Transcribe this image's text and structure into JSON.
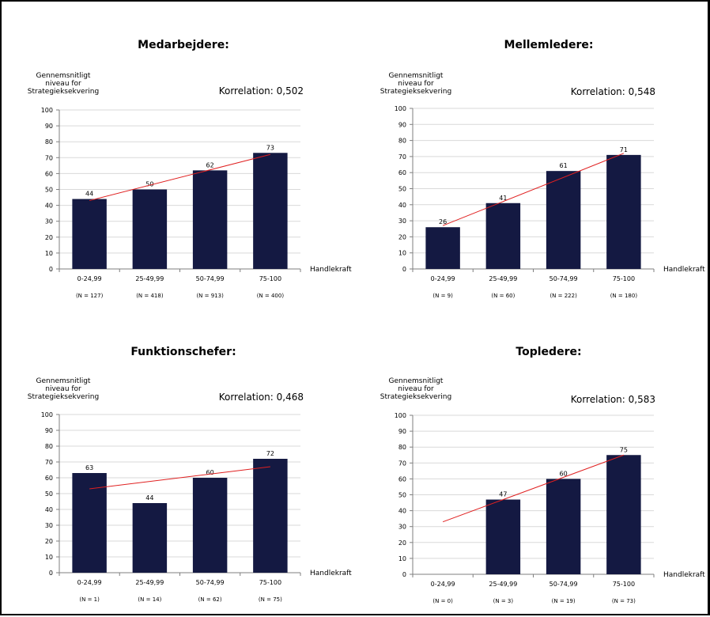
{
  "colors": {
    "bar": "#141942",
    "trend": "#e02020",
    "axis": "#7f7f7f",
    "grid": "#d9d9d9"
  },
  "chart_data": [
    {
      "type": "bar",
      "title": "Medarbejdere:",
      "ylabel": [
        "Gennemsnitligt",
        "niveau for",
        "Strategieksekvering"
      ],
      "xlabel": "Handlekraft",
      "correlation_label": "Korrelation: 0,502",
      "categories": [
        "0-24,99",
        "25-49,99",
        "50-74,99",
        "75-100"
      ],
      "n_labels": [
        "(N = 127)",
        "(N = 418)",
        "(N = 913)",
        "(N = 400)"
      ],
      "values": [
        44,
        50,
        62,
        73
      ],
      "trendline": [
        43,
        52.5,
        62,
        72
      ],
      "ylim": [
        0,
        100
      ],
      "yticks": [
        0,
        10,
        20,
        30,
        40,
        50,
        60,
        70,
        80,
        90,
        100
      ],
      "grid": true
    },
    {
      "type": "bar",
      "title": "Mellemledere:",
      "ylabel": [
        "Gennemsnitligt",
        "niveau for",
        "Strategieksekvering"
      ],
      "xlabel": "Handlekraft",
      "correlation_label": "Korrelation: 0,548",
      "categories": [
        "0-24,99",
        "25-49,99",
        "50-74,99",
        "75-100"
      ],
      "n_labels": [
        "(N = 9)",
        "(N = 60)",
        "(N = 222)",
        "(N = 180)"
      ],
      "values": [
        26,
        41,
        61,
        71
      ],
      "trendline": [
        27,
        42,
        57,
        72
      ],
      "ylim": [
        0,
        100
      ],
      "yticks": [
        0,
        10,
        20,
        30,
        40,
        50,
        60,
        70,
        80,
        90,
        100
      ],
      "grid": true
    },
    {
      "type": "bar",
      "title": "Funktionschefer:",
      "ylabel": [
        "Gennemsnitligt",
        "niveau for",
        "Strategieksekvering"
      ],
      "xlabel": "Handlekraft",
      "correlation_label": "Korrelation: 0,468",
      "categories": [
        "0-24,99",
        "25-49,99",
        "50-74,99",
        "75-100"
      ],
      "n_labels": [
        "(N = 1)",
        "(N = 14)",
        "(N = 62)",
        "(N = 75)"
      ],
      "values": [
        63,
        44,
        60,
        72
      ],
      "trendline": [
        53,
        57.7,
        62.3,
        67
      ],
      "ylim": [
        0,
        100
      ],
      "yticks": [
        0,
        10,
        20,
        30,
        40,
        50,
        60,
        70,
        80,
        90,
        100
      ],
      "grid": true
    },
    {
      "type": "bar",
      "title": "Topledere:",
      "ylabel": [
        "Gennemsnitligt",
        "niveau for",
        "Strategieksekvering"
      ],
      "xlabel": "Handlekraft",
      "correlation_label": "Korrelation: 0,583",
      "categories": [
        "0-24,99",
        "25-49,99",
        "50-74,99",
        "75-100"
      ],
      "n_labels": [
        "(N = 0)",
        "(N = 3)",
        "(N = 19)",
        "(N = 73)"
      ],
      "values": [
        null,
        47,
        60,
        75
      ],
      "trendline": [
        33,
        47,
        61,
        75
      ],
      "ylim": [
        0,
        100
      ],
      "yticks": [
        0,
        10,
        20,
        30,
        40,
        50,
        60,
        70,
        80,
        90,
        100
      ],
      "grid": true
    }
  ]
}
